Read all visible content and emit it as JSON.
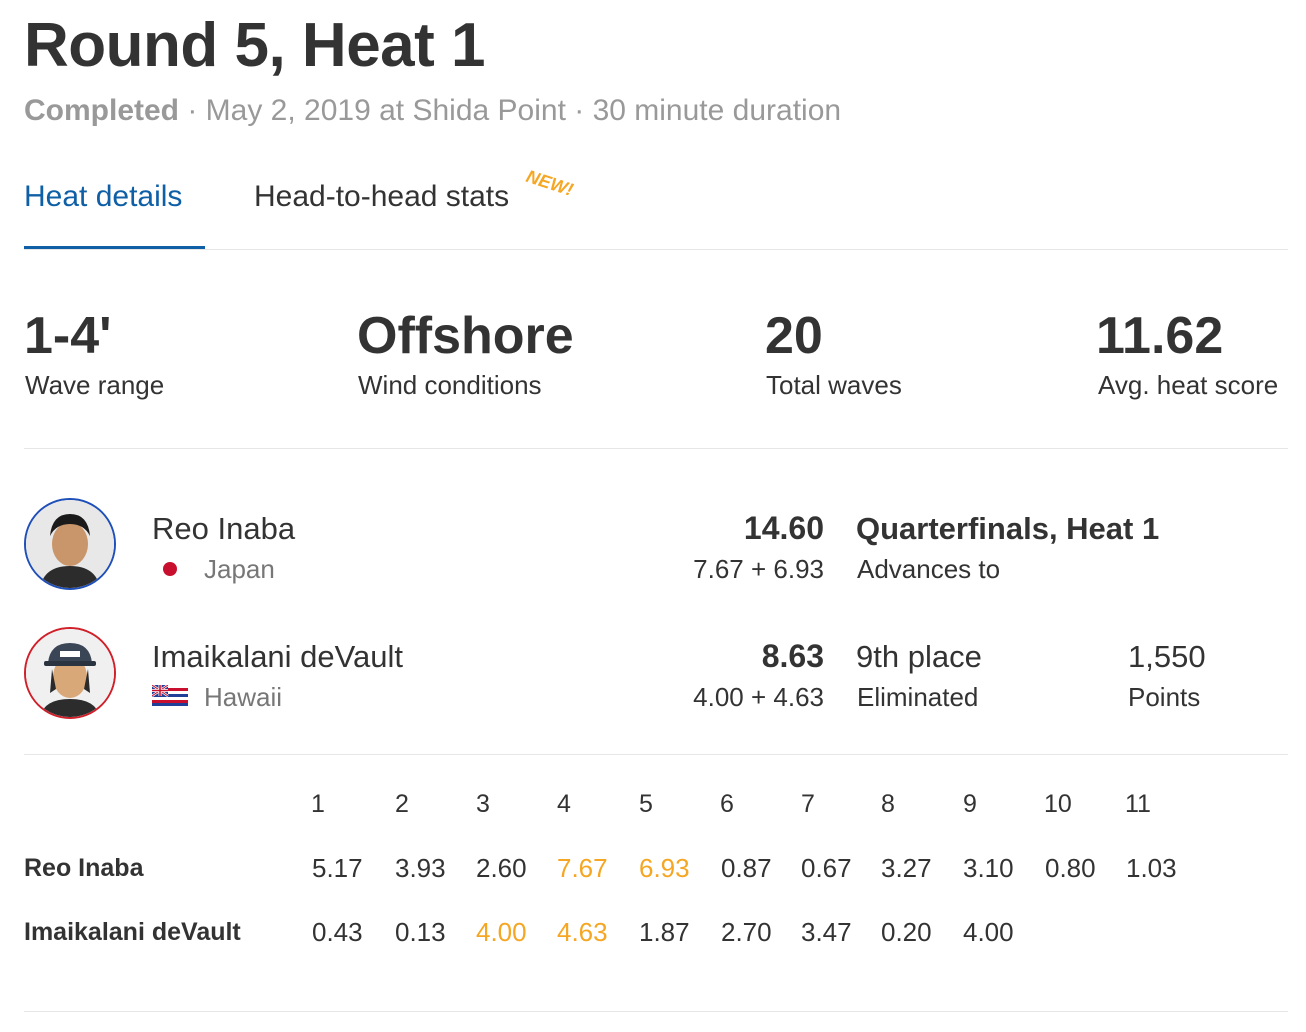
{
  "heat": {
    "title": "Round 5, Heat 1",
    "status": "Completed",
    "details": " · May 2, 2019 at Shida Point · 30 minute duration"
  },
  "tabs": [
    {
      "label": "Heat details",
      "active": true
    },
    {
      "label": "Head-to-head stats",
      "active": false,
      "badge": "NEW!"
    }
  ],
  "stats": [
    {
      "value": "1-4'",
      "label": "Wave range"
    },
    {
      "value": "Offshore",
      "label": "Wind conditions"
    },
    {
      "value": "20",
      "label": "Total waves"
    },
    {
      "value": "11.62",
      "label": "Avg. heat score"
    }
  ],
  "surfers": [
    {
      "name": "Reo Inaba",
      "country": "Japan",
      "flag_icon": "japan-flag-icon",
      "avatar_border": "#1f4fb8",
      "total": "14.60",
      "breakdown": "7.67 + 6.93",
      "result_main": "Quarterfinals, Heat 1",
      "result_sub": "Advances to"
    },
    {
      "name": "Imaikalani deVault",
      "country": "Hawaii",
      "flag_icon": "hawaii-flag-icon",
      "avatar_border": "#d0202a",
      "total": "8.63",
      "breakdown": "4.00 + 4.63",
      "result_main": "9th place",
      "result_sub": "Eliminated",
      "points_value": "1,550",
      "points_label": "Points"
    }
  ],
  "wave_numbers": [
    "1",
    "2",
    "3",
    "4",
    "5",
    "6",
    "7",
    "8",
    "9",
    "10",
    "11"
  ],
  "wave_scores": [
    {
      "surfer": "Reo Inaba",
      "scores": [
        "5.17",
        "3.93",
        "2.60",
        "7.67",
        "6.93",
        "0.87",
        "0.67",
        "3.27",
        "3.10",
        "0.80",
        "1.03"
      ],
      "counted": [
        false,
        false,
        false,
        true,
        true,
        false,
        false,
        false,
        false,
        false,
        false
      ]
    },
    {
      "surfer": "Imaikalani deVault",
      "scores": [
        "0.43",
        "0.13",
        "4.00",
        "4.63",
        "1.87",
        "2.70",
        "3.47",
        "0.20",
        "4.00"
      ],
      "counted": [
        false,
        false,
        true,
        true,
        false,
        false,
        false,
        false,
        false
      ]
    }
  ],
  "colors": {
    "accent": "#0f5fa6",
    "counted_wave": "#f5a623",
    "muted": "#999999"
  }
}
